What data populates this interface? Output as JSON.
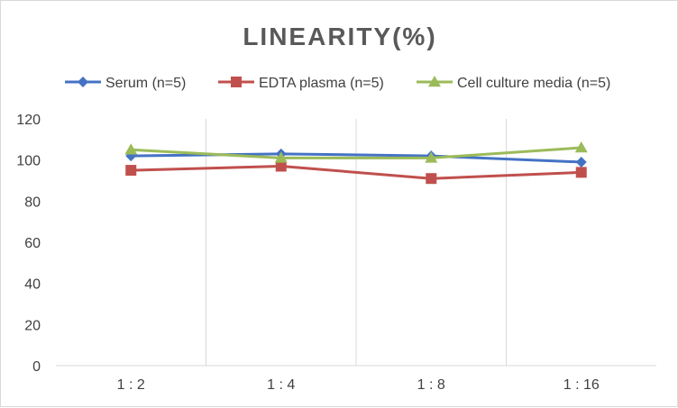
{
  "chart_data": {
    "type": "line",
    "title": "LINEARITY(%)",
    "xlabel": "",
    "ylabel": "",
    "categories": [
      "1:2",
      "1:4",
      "1:8",
      "1:16"
    ],
    "ylim": [
      0,
      120
    ],
    "yticks": [
      0,
      20,
      40,
      60,
      80,
      100,
      120
    ],
    "grid": "vertical",
    "legend_position": "top",
    "series": [
      {
        "name": "Serum (n=5)",
        "values": [
          102,
          103,
          102,
          99
        ],
        "color": "#4472c4",
        "marker": "diamond"
      },
      {
        "name": "EDTA plasma (n=5)",
        "values": [
          95,
          97,
          91,
          94
        ],
        "color": "#c0504d",
        "marker": "square"
      },
      {
        "name": "Cell culture media (n=5)",
        "values": [
          105,
          101,
          101,
          106
        ],
        "color": "#9bbb59",
        "marker": "triangle"
      }
    ]
  }
}
